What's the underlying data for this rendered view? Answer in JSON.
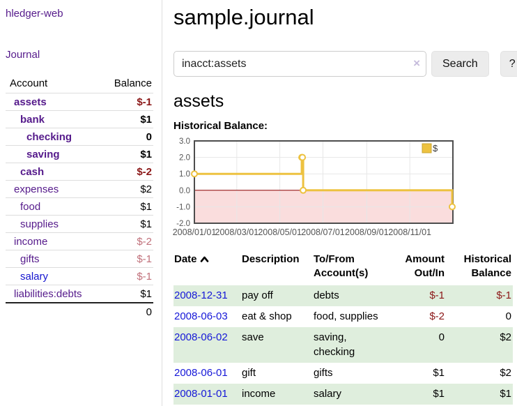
{
  "app": {
    "title": "hledger-web"
  },
  "sidebar": {
    "nav_journal": "Journal",
    "accounts_table": {
      "headers": {
        "account": "Account",
        "balance": "Balance"
      },
      "rows": [
        {
          "name": "assets",
          "level": 0,
          "current_filter": true,
          "link_tone": "visited",
          "balance": "$-1",
          "balance_tone": "negative"
        },
        {
          "name": "bank",
          "level": 1,
          "current_filter": true,
          "link_tone": "visited",
          "balance": "$1",
          "balance_tone": "normal"
        },
        {
          "name": "checking",
          "level": 2,
          "current_filter": true,
          "link_tone": "visited",
          "balance": "0",
          "balance_tone": "normal"
        },
        {
          "name": "saving",
          "level": 2,
          "current_filter": true,
          "link_tone": "visited",
          "balance": "$1",
          "balance_tone": "normal"
        },
        {
          "name": "cash",
          "level": 1,
          "current_filter": true,
          "link_tone": "visited",
          "balance": "$-2",
          "balance_tone": "negative"
        },
        {
          "name": "expenses",
          "level": 0,
          "current_filter": false,
          "link_tone": "visited",
          "balance": "$2",
          "balance_tone": "normal"
        },
        {
          "name": "food",
          "level": 1,
          "current_filter": false,
          "link_tone": "visited",
          "balance": "$1",
          "balance_tone": "normal"
        },
        {
          "name": "supplies",
          "level": 1,
          "current_filter": false,
          "link_tone": "visited",
          "balance": "$1",
          "balance_tone": "normal"
        },
        {
          "name": "income",
          "level": 0,
          "current_filter": false,
          "link_tone": "visited",
          "balance": "$-2",
          "balance_tone": "negative-dim"
        },
        {
          "name": "gifts",
          "level": 1,
          "current_filter": false,
          "link_tone": "visited",
          "balance": "$-1",
          "balance_tone": "negative-dim"
        },
        {
          "name": "salary",
          "level": 1,
          "current_filter": false,
          "link_tone": "unvisited",
          "balance": "$-1",
          "balance_tone": "negative-dim"
        },
        {
          "name": "liabilities:debts",
          "level": 0,
          "current_filter": false,
          "link_tone": "visited",
          "balance": "$1",
          "balance_tone": "normal"
        }
      ],
      "total": "0"
    }
  },
  "main": {
    "title": "sample.journal",
    "search": {
      "value": "inacct:assets",
      "clear_glyph": "×",
      "button_label": "Search",
      "help_label": "?"
    },
    "account_heading": "assets",
    "chart_heading": "Historical Balance:"
  },
  "chart_data": {
    "type": "line",
    "step": true,
    "title": "Historical Balance",
    "x_range": [
      "2008-01-01",
      "2009-01-01"
    ],
    "ylim": [
      -2,
      3
    ],
    "grid": true,
    "series": [
      {
        "name": "$",
        "color": "#edc240",
        "points": [
          {
            "date": "2008-01-01",
            "value": 1.0
          },
          {
            "date": "2008-06-01",
            "value": 2.0
          },
          {
            "date": "2008-06-02",
            "value": 2.0
          },
          {
            "date": "2008-06-03",
            "value": 0.0
          },
          {
            "date": "2008-12-31",
            "value": -1.0
          }
        ]
      }
    ],
    "y_ticks": [
      {
        "value": 3,
        "label": "3.0"
      },
      {
        "value": 2,
        "label": "2.0"
      },
      {
        "value": 1,
        "label": "1.0"
      },
      {
        "value": 0,
        "label": "0.0"
      },
      {
        "value": -1,
        "label": "-1.0"
      },
      {
        "value": -2,
        "label": "-2.0"
      }
    ],
    "x_ticks": [
      {
        "date": "2008-01-01",
        "label": "2008/01/01"
      },
      {
        "date": "2008-03-01",
        "label": "2008/03/01"
      },
      {
        "date": "2008-05-01",
        "label": "2008/05/01"
      },
      {
        "date": "2008-07-01",
        "label": "2008/07/01"
      },
      {
        "date": "2008-09-01",
        "label": "2008/09/01"
      },
      {
        "date": "2008-11-01",
        "label": "2008/11/01"
      }
    ],
    "legend": {
      "position": "top-right",
      "label": "$"
    },
    "colors": {
      "negative_region_fill": "#fadddd",
      "zero_line": "#8b0000",
      "gridline": "#e7e7e7",
      "border": "#4d4d4d",
      "tick_text": "#545454"
    }
  },
  "transactions": {
    "headers": [
      {
        "label": "Date",
        "sorted": true
      },
      {
        "label": "Description"
      },
      {
        "label": "To/From Account(s)"
      },
      {
        "label": "Amount Out/In"
      },
      {
        "label": "Historical Balance"
      }
    ],
    "rows": [
      {
        "date": "2008-12-31",
        "description": "pay off",
        "accounts": "debts",
        "amount": "$-1",
        "amount_tone": "negative",
        "balance": "$-1",
        "balance_tone": "negative"
      },
      {
        "date": "2008-06-03",
        "description": "eat & shop",
        "accounts": "food, supplies",
        "amount": "$-2",
        "amount_tone": "negative",
        "balance": "0",
        "balance_tone": "normal"
      },
      {
        "date": "2008-06-02",
        "description": "save",
        "accounts": "saving, checking",
        "amount": "0",
        "amount_tone": "normal",
        "balance": "$2",
        "balance_tone": "normal"
      },
      {
        "date": "2008-06-01",
        "description": "gift",
        "accounts": "gifts",
        "amount": "$1",
        "amount_tone": "normal",
        "balance": "$2",
        "balance_tone": "normal"
      },
      {
        "date": "2008-01-01",
        "description": "income",
        "accounts": "salary",
        "amount": "$1",
        "amount_tone": "normal",
        "balance": "$1",
        "balance_tone": "normal"
      }
    ]
  }
}
